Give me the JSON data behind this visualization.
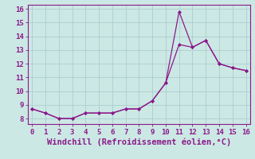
{
  "xlabel": "Windchill (Refroidissement éolien,°C)",
  "bg_color": "#cce8e4",
  "line_color": "#8b1a8b",
  "grid_color": "#aacece",
  "spine_color": "#8b1a8b",
  "line1_x": [
    0,
    1,
    2,
    3,
    4,
    5,
    6,
    7,
    8,
    9,
    10,
    11,
    12,
    13,
    14,
    15,
    16
  ],
  "line1_y": [
    8.7,
    8.4,
    8.0,
    8.0,
    8.4,
    8.4,
    8.4,
    8.7,
    8.7,
    9.3,
    10.6,
    13.4,
    13.2,
    13.7,
    12.0,
    11.7,
    11.5
  ],
  "line2_x": [
    0,
    1,
    2,
    3,
    4,
    5,
    6,
    7,
    8,
    9,
    10,
    11,
    12,
    13,
    14,
    15,
    16
  ],
  "line2_y": [
    8.7,
    8.4,
    8.0,
    8.0,
    8.4,
    8.4,
    8.4,
    8.7,
    8.7,
    9.3,
    10.6,
    15.8,
    13.2,
    13.7,
    12.0,
    11.7,
    11.5
  ],
  "xlim": [
    -0.3,
    16.3
  ],
  "ylim": [
    7.6,
    16.3
  ],
  "xticks": [
    0,
    1,
    2,
    3,
    4,
    5,
    6,
    7,
    8,
    9,
    10,
    11,
    12,
    13,
    14,
    15,
    16
  ],
  "yticks": [
    8,
    9,
    10,
    11,
    12,
    13,
    14,
    15,
    16
  ],
  "tick_fontsize": 6.5,
  "xlabel_fontsize": 7.5
}
